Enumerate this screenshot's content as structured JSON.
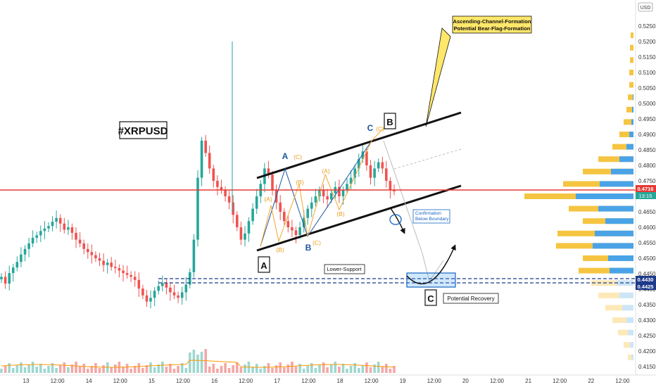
{
  "chart_data": {
    "type": "candlestick",
    "symbol_label": "#XRPUSD",
    "currency": "USD",
    "current_price": "0.4716",
    "countdown": "13:15",
    "y_ticks": [
      "0.5250",
      "0.5200",
      "0.5150",
      "0.5100",
      "0.5050",
      "0.5000",
      "0.4950",
      "0.4900",
      "0.4850",
      "0.4800",
      "0.4750",
      "0.4700",
      "0.4650",
      "0.4600",
      "0.4550",
      "0.4500",
      "0.4450",
      "0.4400",
      "0.4350",
      "0.4300",
      "0.4250",
      "0.4200",
      "0.4150"
    ],
    "y_range": [
      0.4125,
      0.528
    ],
    "x_ticks": [
      "13",
      "12:00",
      "14",
      "12:00",
      "15",
      "12:00",
      "16",
      "12:00",
      "17",
      "12:00",
      "18",
      "12:00",
      "19",
      "12:00",
      "20",
      "12:00",
      "21",
      "12:00",
      "22",
      "12:00"
    ],
    "support_labels": [
      "0.4430",
      "0.4425"
    ],
    "support_levels": [
      0.443,
      0.4425
    ],
    "resistance_level": 0.4716,
    "callout": [
      "Ascending-Channel-Formation",
      "Potential Bear-Flag-Formation"
    ],
    "annotations": {
      "wave_A": "A",
      "wave_B": "B",
      "wave_C": "C",
      "sub_A": "A",
      "sub_B": "B",
      "sub_C": "C",
      "small_A": "(A)",
      "small_B": "(B)",
      "small_C": "(C)",
      "confirmation": [
        "Confirmation",
        "Below Boundary"
      ],
      "lower_support": "Lower-Support",
      "potential_recovery": "Potential Recovery"
    },
    "series_closes": [
      0.444,
      0.4418,
      0.4452,
      0.447,
      0.4488,
      0.4512,
      0.453,
      0.4548,
      0.4566,
      0.4574,
      0.4588,
      0.4596,
      0.4604,
      0.4618,
      0.463,
      0.4612,
      0.4592,
      0.46,
      0.4582,
      0.456,
      0.4548,
      0.453,
      0.452,
      0.451,
      0.45,
      0.4492,
      0.4478,
      0.4486,
      0.4472,
      0.4468,
      0.446,
      0.4452,
      0.4446,
      0.444,
      0.443,
      0.4402,
      0.438,
      0.436,
      0.4372,
      0.4395,
      0.441,
      0.442,
      0.4405,
      0.439,
      0.438,
      0.4372,
      0.439,
      0.4415,
      0.4455,
      0.456,
      0.476,
      0.488,
      0.484,
      0.479,
      0.475,
      0.473,
      0.472,
      0.47,
      0.468,
      0.464,
      0.46,
      0.456,
      0.458,
      0.462,
      0.466,
      0.47,
      0.474,
      0.479,
      0.477,
      0.472,
      0.468,
      0.465,
      0.462,
      0.46,
      0.459,
      0.4575,
      0.46,
      0.463,
      0.466,
      0.468,
      0.47,
      0.472,
      0.47,
      0.469,
      0.471,
      0.473,
      0.47,
      0.472,
      0.474,
      0.476,
      0.479,
      0.482,
      0.4845,
      0.48,
      0.476,
      0.479,
      0.481,
      0.479,
      0.475,
      0.472,
      0.4716
    ]
  }
}
